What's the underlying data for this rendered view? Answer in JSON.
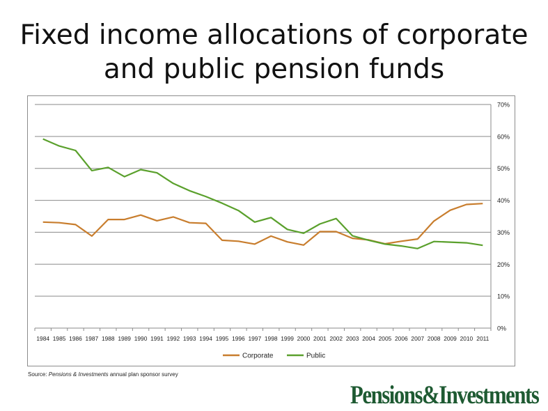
{
  "title_line1": "Fixed income allocations of corporate",
  "title_line2": "and public pension funds",
  "source": {
    "prefix": "Source: ",
    "publication": "Pensions & Investments",
    "suffix": " annual plan sponsor survey"
  },
  "logo_text": "Pensions&Investments",
  "colors": {
    "corporate": "#c87d2d",
    "public": "#5aa02c",
    "logo": "#1e5a32"
  },
  "chart_data": {
    "type": "line",
    "title": "",
    "xlabel": "",
    "ylabel": "",
    "categories": [
      "1984",
      "1985",
      "1986",
      "1987",
      "1988",
      "1989",
      "1990",
      "1991",
      "1992",
      "1993",
      "1994",
      "1995",
      "1996",
      "1997",
      "1998",
      "1999",
      "2000",
      "2001",
      "2002",
      "2003",
      "2004",
      "2005",
      "2006",
      "2007",
      "2008",
      "2009",
      "2010",
      "2011"
    ],
    "series": [
      {
        "name": "Corporate",
        "color": "#c87d2d",
        "values": [
          33.2,
          33.0,
          32.4,
          28.8,
          34.0,
          34.0,
          35.4,
          33.6,
          34.8,
          33.0,
          32.8,
          27.5,
          27.2,
          26.3,
          28.8,
          27.0,
          26.0,
          30.2,
          30.2,
          28.1,
          27.6,
          26.4,
          27.2,
          27.9,
          33.5,
          36.9,
          38.7,
          39.0
        ]
      },
      {
        "name": "Public",
        "color": "#5aa02c",
        "values": [
          59.2,
          57.0,
          55.6,
          49.3,
          50.3,
          47.4,
          49.6,
          48.6,
          45.3,
          43.0,
          41.2,
          39.1,
          36.8,
          33.2,
          34.6,
          30.9,
          29.7,
          32.6,
          34.3,
          28.9,
          27.5,
          26.3,
          25.7,
          24.9,
          27.1,
          26.9,
          26.7,
          25.9
        ]
      }
    ],
    "y_ticks": [
      "0%",
      "10%",
      "20%",
      "30%",
      "40%",
      "50%",
      "60%",
      "70%"
    ],
    "ylim": [
      0,
      70
    ],
    "y_axis_side": "right",
    "grid": true,
    "legend_position": "bottom"
  }
}
